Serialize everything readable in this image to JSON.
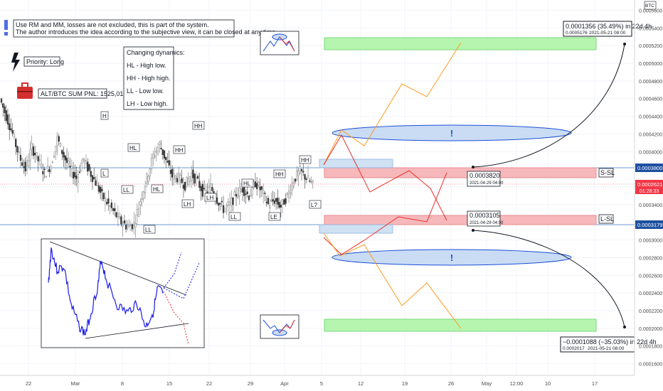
{
  "header": {
    "note_line1": "Use RM and MM, losses are not excluded, this is part of the system.",
    "note_line2": "The author introduces the idea according to the subjective view, it can be closed at any time.",
    "priority": "Priority: Long",
    "pnl": "ALT/BTC SUM PNL: 1525,01.",
    "currency_badge": "BTC"
  },
  "legend_box": {
    "title": "Changing dynamics:",
    "lines": [
      "HL - High low.",
      "HH - High high.",
      "LL - Low low.",
      "LH - Low high."
    ]
  },
  "chart_data": {
    "type": "candlestick",
    "title": "",
    "xlabel": "",
    "ylabel": "",
    "ylim": [
      0.00015,
      0.00057
    ],
    "y_ticks": [
      "0.0005600",
      "0.0005400",
      "0.0005200",
      "0.0005000",
      "0.0004800",
      "0.0004600",
      "0.0004400",
      "0.0004200",
      "0.0004000",
      "0.0003600",
      "0.0003400",
      "0.0003000",
      "0.0002800",
      "0.0002600",
      "0.0002400",
      "0.0002200",
      "0.0002000",
      "0.0001800",
      "0.0001600"
    ],
    "x_ticks": [
      "22",
      "Mar",
      "8",
      "15",
      "22",
      "29",
      "Apr",
      "5",
      "12",
      "19",
      "26",
      "May",
      "12:00",
      "10",
      "17"
    ],
    "price_series_approx": [
      0.00046,
      0.00044,
      0.00042,
      0.000395,
      0.00038,
      0.000405,
      0.00039,
      0.000375,
      0.000385,
      0.000415,
      0.000395,
      0.00038,
      0.00037,
      0.000392,
      0.000378,
      0.000365,
      0.00035,
      0.00034,
      0.00033,
      0.00032,
      0.000315,
      0.000318,
      0.000345,
      0.00037,
      0.000395,
      0.000408,
      0.00039,
      0.000372,
      0.00037,
      0.000362,
      0.000375,
      0.000365,
      0.000352,
      0.00036,
      0.000346,
      0.000335,
      0.00034,
      0.000352,
      0.000358,
      0.00035,
      0.000365,
      0.000355,
      0.00034,
      0.000345,
      0.000338,
      0.00035,
      0.000368,
      0.000378,
      0.00037,
      0.000362
    ],
    "structure_labels": [
      "H",
      "HL",
      "HH",
      "L",
      "LL",
      "HL",
      "LH",
      "LH",
      "HH",
      "HL",
      "LL",
      "LL",
      "LE",
      "HH",
      "L?"
    ],
    "levels": {
      "s_sl_price": "0.0003800",
      "current_price": "0.0002621",
      "current_time": "01:28:33",
      "l_sl_price": "0.0003179",
      "s_sl_label": "S-SL",
      "l_sl_label": "L-SL"
    },
    "annotations": {
      "upper_target": {
        "line1": "0.0001356 (35.49%) in 22d 4h",
        "line2_a": "0.0005176",
        "line2_b": "2021-05-21  08:00"
      },
      "lower_target": {
        "line1": "−0.0001088 (−35.03%) in 22d 4h",
        "line2_a": "0.0002017",
        "line2_b": "2021-05-21  08:00"
      },
      "upper_entry": {
        "line1": "0.0003820",
        "line2": "2021-04-29 04:00"
      },
      "lower_entry": {
        "line1": "0.0003105",
        "line2": "2021-04-29 04:00"
      }
    },
    "markers": {
      "exclaim": "!"
    },
    "colors": {
      "up": "#26a69a",
      "down": "#ef5350",
      "candle": "#4a4a4a",
      "green_zone": "#b6f5b0",
      "red_zone": "#f6b8bb",
      "blue_zone": "#c7dcf2",
      "price_tag": "#f23645",
      "level_tag": "#1e50a0",
      "orange": "#ff9a1f",
      "red_line": "#e8302a"
    }
  }
}
